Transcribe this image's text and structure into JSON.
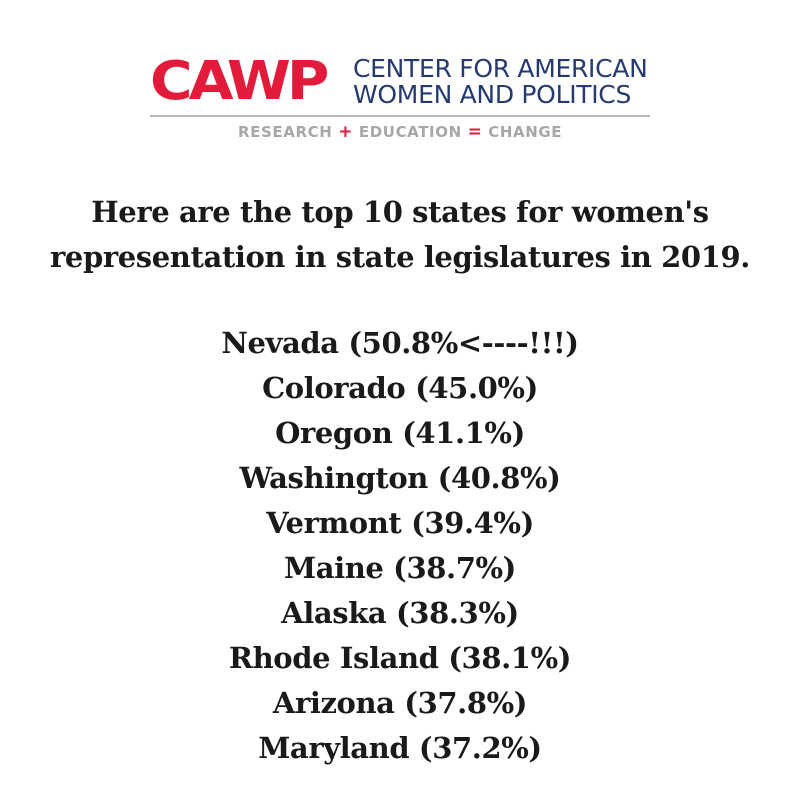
{
  "logo": {
    "mark": "CAWP",
    "name_line1": "CENTER FOR AMERICAN",
    "name_line2": "WOMEN AND POLITICS",
    "tagline_research": "RESEARCH",
    "tagline_plus": "+",
    "tagline_education": "EDUCATION",
    "tagline_equals": "=",
    "tagline_change": "CHANGE",
    "brand_red": "#e31b3b",
    "brand_navy": "#243a71"
  },
  "intro": {
    "line1": "Here are the top 10 states for women's",
    "line2": "representation in state legislatures in 2019."
  },
  "states": [
    "Nevada (50.8%<----!!!)",
    "Colorado (45.0%)",
    "Oregon (41.1%)",
    "Washington (40.8%)",
    "Vermont (39.4%)",
    "Maine (38.7%)",
    "Alaska (38.3%)",
    "Rhode Island (38.1%)",
    "Arizona (37.8%)",
    "Maryland (37.2%)"
  ]
}
